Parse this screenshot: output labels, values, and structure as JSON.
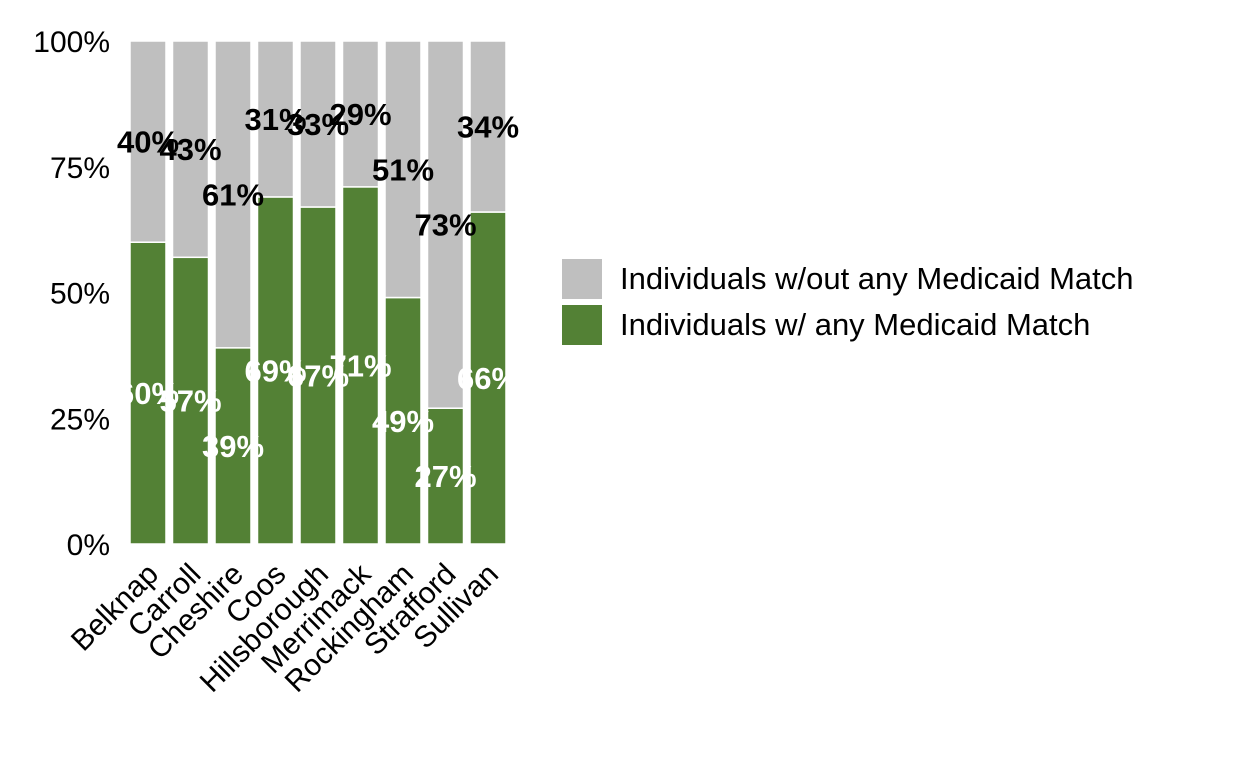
{
  "chart_data": {
    "type": "bar",
    "stacked": true,
    "categories": [
      "Belknap",
      "Carroll",
      "Cheshire",
      "Coos",
      "Hillsborough",
      "Merrimack",
      "Rockingham",
      "Strafford",
      "Sullivan"
    ],
    "series": [
      {
        "name": "Individuals w/ any Medicaid Match",
        "color": "#538135",
        "values": [
          60,
          57,
          39,
          69,
          67,
          71,
          49,
          27,
          66
        ],
        "labels": [
          "60%",
          "57%",
          "39%",
          "69%",
          "67%",
          "71%",
          "49%",
          "27%",
          "66%"
        ],
        "label_color": "#ffffff"
      },
      {
        "name": "Individuals w/out any Medicaid Match",
        "color": "#bfbfbf",
        "values": [
          40,
          43,
          61,
          31,
          33,
          29,
          51,
          73,
          34
        ],
        "labels": [
          "40%",
          "43%",
          "61%",
          "31%",
          "33%",
          "29%",
          "51%",
          "73%",
          "34%"
        ],
        "label_color": "#000000"
      }
    ],
    "ylim": [
      0,
      100
    ],
    "yticks": [
      "0%",
      "25%",
      "50%",
      "75%",
      "100%"
    ],
    "grid": false,
    "legend_position": "right"
  },
  "legend": {
    "items": [
      {
        "label": "Individuals w/out any Medicaid Match",
        "color": "#bfbfbf"
      },
      {
        "label": "Individuals w/ any Medicaid Match",
        "color": "#538135"
      }
    ]
  }
}
